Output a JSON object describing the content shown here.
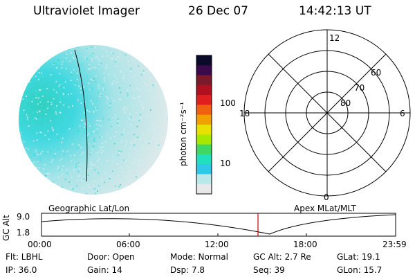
{
  "header": {
    "title": "Ultraviolet Imager",
    "date": "26 Dec 07",
    "time": "14:42:13 UT"
  },
  "colorbar": {
    "unit_label": "photon cm⁻²s⁻¹",
    "ticks": [
      "100",
      "10"
    ],
    "colors": [
      "#0a0a2a",
      "#3a0a4a",
      "#7a1a2a",
      "#b01020",
      "#e02020",
      "#f06010",
      "#f0a000",
      "#e8e000",
      "#a8e800",
      "#40d860",
      "#20e0c0",
      "#30c8e8",
      "#b8e8e8",
      "#e8e8e8"
    ]
  },
  "polar_plot": {
    "mlt_labels": [
      "12",
      "18",
      "6",
      "0"
    ],
    "lat_labels": [
      "60",
      "70",
      "80"
    ]
  },
  "timeline": {
    "left_label": "Geographic Lat/Lon",
    "right_label": "Apex MLat/MLT",
    "axis_title": "GC Alt",
    "y_ticks": [
      "9.0",
      "1.8"
    ],
    "x_ticks": [
      "00:00",
      "06:00",
      "12:00",
      "18:00",
      "23:59"
    ],
    "marker_color": "#cc0000"
  },
  "info": {
    "flt": "Flt: LBHL",
    "door": "Door: Open",
    "mode": "Mode: Normal",
    "gc_alt": "GC Alt: 2.7 Re",
    "glat": "GLat:  19.1",
    "ip": "IP: 36.0",
    "gain": "Gain: 14",
    "dsp": "Dsp:    7.8",
    "seq": "Seq: 39",
    "glon": "GLon:  15.7"
  }
}
